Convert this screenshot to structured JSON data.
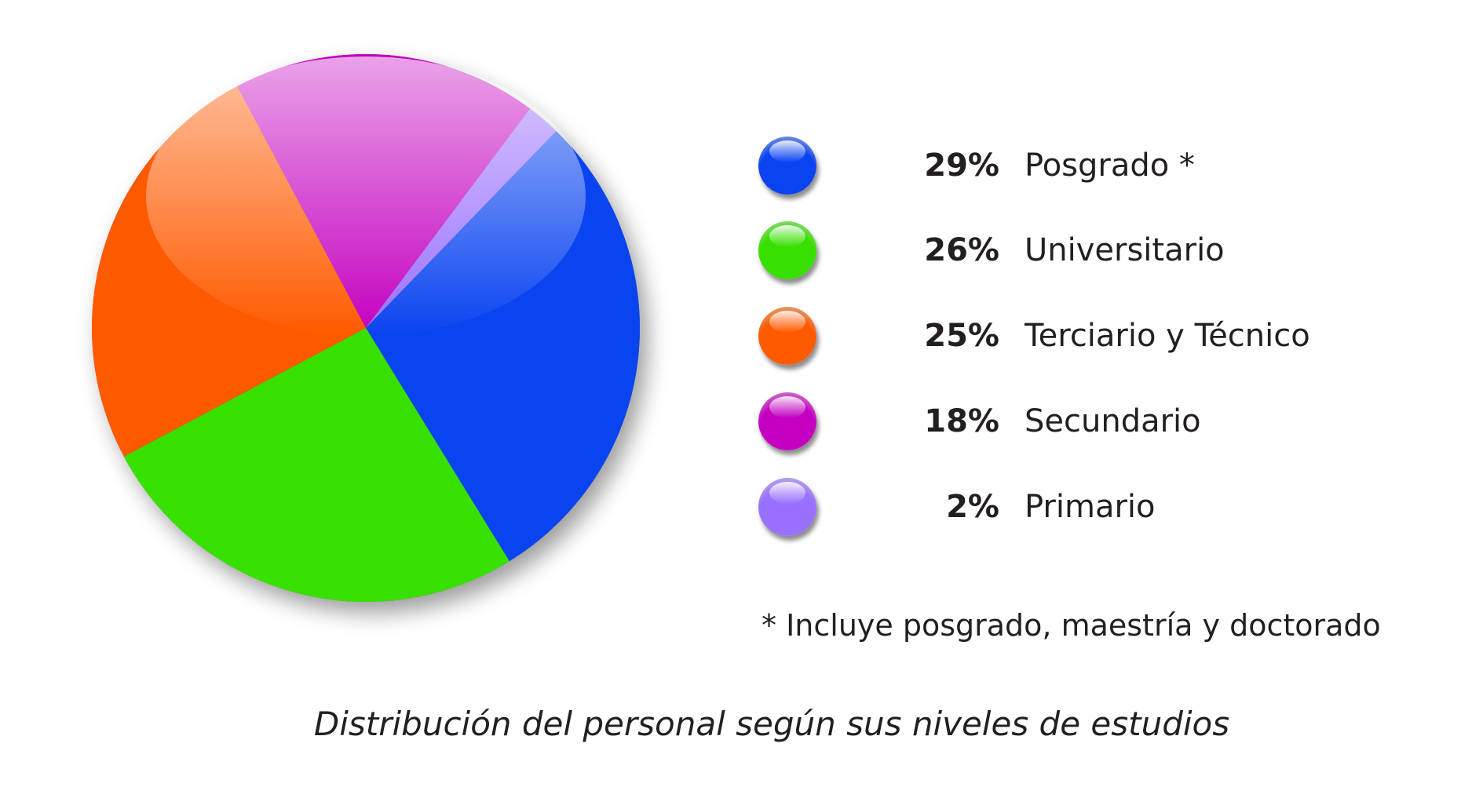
{
  "chart_data": {
    "type": "pie",
    "title": "Distribución del personal según  sus niveles de estudios",
    "start_angle_deg": 44,
    "slices": [
      {
        "label": "Posgrado *",
        "value": 29,
        "display": "29%",
        "color": "#0a44f0"
      },
      {
        "label": "Universitario",
        "value": 26,
        "display": "26%",
        "color": "#38e000"
      },
      {
        "label": "Terciario y Técnico",
        "value": 25,
        "display": "25%",
        "color": "#ff5a00"
      },
      {
        "label": "Secundario",
        "value": 18,
        "display": "18%",
        "color": "#c400c0"
      },
      {
        "label": "Primario",
        "value": 2,
        "display": "2%",
        "color": "#9a70ff"
      }
    ],
    "legend_position": "right",
    "footnote": "* Incluye posgrado, maestría y doctorado"
  }
}
